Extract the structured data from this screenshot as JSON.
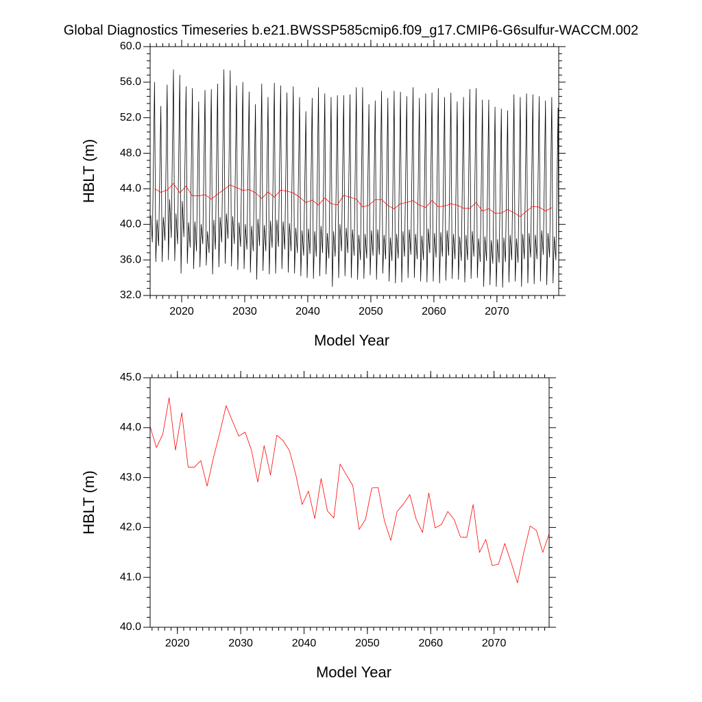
{
  "chart_data": [
    {
      "type": "line",
      "title": "Global Diagnostics Timeseries b.e21.BWSSP585cmip6.f09_g17.CMIP6-G6sulfur-WACCM.002",
      "x_label": "Model Year",
      "y_label": "HBLT (m)",
      "xlim": [
        2015.0,
        2079.8
      ],
      "ylim": [
        32,
        60
      ],
      "xticks": [
        2020,
        2030,
        2040,
        2050,
        2060,
        2070
      ],
      "yticks": [
        {
          "value": 32,
          "label": "32.0"
        },
        {
          "value": 36,
          "label": "36.0"
        },
        {
          "value": 40,
          "label": "40.0"
        },
        {
          "value": 44,
          "label": "44.0"
        },
        {
          "value": 48,
          "label": "48.0"
        },
        {
          "value": 52,
          "label": "52.0"
        },
        {
          "value": 56,
          "label": "56.0"
        },
        {
          "value": 60,
          "label": "60.0"
        }
      ],
      "series": [
        {
          "color": "#000000",
          "x": [
            2015.1,
            2015.35,
            2015.7,
            2015.9,
            2016.1,
            2016.35,
            2016.7,
            2016.9,
            2017.1,
            2017.35,
            2017.7,
            2017.9,
            2018.1,
            2018.35,
            2018.7,
            2018.9,
            2019.1,
            2019.35,
            2019.7,
            2019.9,
            2020.1,
            2020.35,
            2020.7,
            2020.9,
            2021.1,
            2021.35,
            2021.7,
            2021.9,
            2022.1,
            2022.35,
            2022.7,
            2022.9,
            2023.1,
            2023.35,
            2023.7,
            2023.9,
            2024.1,
            2024.35,
            2024.7,
            2024.9,
            2025.1,
            2025.35,
            2025.7,
            2025.9,
            2026.1,
            2026.35,
            2026.7,
            2026.9,
            2027.1,
            2027.35,
            2027.7,
            2027.9,
            2028.1,
            2028.35,
            2028.7,
            2028.9,
            2029.1,
            2029.35,
            2029.7,
            2029.9,
            2030.1,
            2030.35,
            2030.7,
            2030.9,
            2031.1,
            2031.35,
            2031.7,
            2031.9,
            2032.1,
            2032.35,
            2032.7,
            2032.9,
            2033.1,
            2033.35,
            2033.7,
            2033.9,
            2034.1,
            2034.35,
            2034.7,
            2034.9,
            2035.1,
            2035.35,
            2035.7,
            2035.9,
            2036.1,
            2036.35,
            2036.7,
            2036.9,
            2037.1,
            2037.35,
            2037.7,
            2037.9,
            2038.1,
            2038.35,
            2038.7,
            2038.9,
            2039.1,
            2039.35,
            2039.7,
            2039.9,
            2040.1,
            2040.35,
            2040.7,
            2040.9,
            2041.1,
            2041.35,
            2041.7,
            2041.9,
            2042.1,
            2042.35,
            2042.7,
            2042.9,
            2043.1,
            2043.35,
            2043.7,
            2043.9,
            2044.1,
            2044.35,
            2044.7,
            2044.9,
            2045.1,
            2045.35,
            2045.7,
            2045.9,
            2046.1,
            2046.35,
            2046.7,
            2046.9,
            2047.1,
            2047.35,
            2047.7,
            2047.9,
            2048.1,
            2048.35,
            2048.7,
            2048.9,
            2049.1,
            2049.35,
            2049.7,
            2049.9,
            2050.1,
            2050.35,
            2050.7,
            2050.9,
            2051.1,
            2051.35,
            2051.7,
            2051.9,
            2052.1,
            2052.35,
            2052.7,
            2052.9,
            2053.1,
            2053.35,
            2053.7,
            2053.9,
            2054.1,
            2054.35,
            2054.7,
            2054.9,
            2055.1,
            2055.35,
            2055.7,
            2055.9,
            2056.1,
            2056.35,
            2056.7,
            2056.9,
            2057.1,
            2057.35,
            2057.7,
            2057.9,
            2058.1,
            2058.35,
            2058.7,
            2058.9,
            2059.1,
            2059.35,
            2059.7,
            2059.9,
            2060.1,
            2060.35,
            2060.7,
            2060.9,
            2061.1,
            2061.35,
            2061.7,
            2061.9,
            2062.1,
            2062.35,
            2062.7,
            2062.9,
            2063.1,
            2063.35,
            2063.7,
            2063.9,
            2064.1,
            2064.35,
            2064.7,
            2064.9,
            2065.1,
            2065.35,
            2065.7,
            2065.9,
            2066.1,
            2066.35,
            2066.7,
            2066.9,
            2067.1,
            2067.35,
            2067.7,
            2067.9,
            2068.1,
            2068.35,
            2068.7,
            2068.9,
            2069.1,
            2069.35,
            2069.7,
            2069.9,
            2070.1,
            2070.35,
            2070.7,
            2070.9,
            2071.1,
            2071.35,
            2071.7,
            2071.9,
            2072.1,
            2072.35,
            2072.7,
            2072.9,
            2073.1,
            2073.35,
            2073.7,
            2073.9,
            2074.1,
            2074.35,
            2074.7,
            2074.9,
            2075.1,
            2075.35,
            2075.7,
            2075.9,
            2076.1,
            2076.35,
            2076.7,
            2076.9,
            2077.1,
            2077.35,
            2077.7,
            2077.9,
            2078.1,
            2078.35,
            2078.7,
            2078.9,
            2079.1,
            2079.35,
            2079.7,
            2079.8
          ],
          "values": [
            41.0,
            38.0,
            56.0,
            35.8,
            40.5,
            37.6,
            53.3,
            35.8,
            40.8,
            38.2,
            55.7,
            36.0,
            42.8,
            38.5,
            57.4,
            35.9,
            41.2,
            37.8,
            56.8,
            34.5,
            42.6,
            38.6,
            55.5,
            35.6,
            40.2,
            37.4,
            55.3,
            35.0,
            40.3,
            37.0,
            53.8,
            35.2,
            40.0,
            37.8,
            55.1,
            35.4,
            39.2,
            36.8,
            55.2,
            34.4,
            40.5,
            37.2,
            55.8,
            35.2,
            40.8,
            38.0,
            57.4,
            35.6,
            41.2,
            38.4,
            57.3,
            35.3,
            40.9,
            37.8,
            55.6,
            34.9,
            40.2,
            37.5,
            56.0,
            35.0,
            40.0,
            37.2,
            54.9,
            34.6,
            39.8,
            37.0,
            53.5,
            33.8,
            40.6,
            37.6,
            55.8,
            34.8,
            39.9,
            37.0,
            54.3,
            34.4,
            40.4,
            37.4,
            55.9,
            34.5,
            40.5,
            37.5,
            55.6,
            35.0,
            40.3,
            37.2,
            54.8,
            34.6,
            40.1,
            37.0,
            55.5,
            34.5,
            39.6,
            36.8,
            54.3,
            34.2,
            39.3,
            36.5,
            52.7,
            34.0,
            39.5,
            36.7,
            54.2,
            33.9,
            39.2,
            36.4,
            55.4,
            34.2,
            39.8,
            36.8,
            54.7,
            34.4,
            39.0,
            36.2,
            54.3,
            33.0,
            39.2,
            36.4,
            54.5,
            34.0,
            40.0,
            37.0,
            54.5,
            34.2,
            39.6,
            36.8,
            54.6,
            34.0,
            39.4,
            36.5,
            55.4,
            33.8,
            38.8,
            36.0,
            55.4,
            33.9,
            38.9,
            36.2,
            53.5,
            34.3,
            39.3,
            36.5,
            53.9,
            33.8,
            39.4,
            36.6,
            55.0,
            34.5,
            38.8,
            36.1,
            54.2,
            33.6,
            38.5,
            35.9,
            55.0,
            33.4,
            38.9,
            36.2,
            54.9,
            33.5,
            39.2,
            36.4,
            54.4,
            34.0,
            39.4,
            36.6,
            55.4,
            34.0,
            38.9,
            36.1,
            54.2,
            33.6,
            38.7,
            36.0,
            54.7,
            33.5,
            39.5,
            36.8,
            54.8,
            33.6,
            39.0,
            36.3,
            55.3,
            33.4,
            39.1,
            36.4,
            54.3,
            33.7,
            39.3,
            36.5,
            54.8,
            33.9,
            38.9,
            36.1,
            53.8,
            33.8,
            38.6,
            35.9,
            54.3,
            33.5,
            38.8,
            36.0,
            55.2,
            33.9,
            39.2,
            36.4,
            55.3,
            34.0,
            38.4,
            35.8,
            54.0,
            33.0,
            38.6,
            35.9,
            54.0,
            33.2,
            38.2,
            35.6,
            53.2,
            33.0,
            38.3,
            35.7,
            53.0,
            32.9,
            38.5,
            35.8,
            52.8,
            33.5,
            38.8,
            36.0,
            54.6,
            33.6,
            38.4,
            35.7,
            54.3,
            33.0,
            38.9,
            36.1,
            54.7,
            33.4,
            39.0,
            36.3,
            54.6,
            33.3,
            38.8,
            36.1,
            54.4,
            33.6,
            39.3,
            36.6,
            53.9,
            33.2,
            39.0,
            36.3,
            54.3,
            33.4,
            38.6,
            36.0,
            53.1,
            33.5
          ]
        },
        {
          "color": "#ff0000",
          "x": [
            2015.7,
            2016.7,
            2017.7,
            2018.7,
            2019.7,
            2020.7,
            2021.7,
            2022.7,
            2023.7,
            2024.7,
            2025.7,
            2026.7,
            2027.7,
            2028.7,
            2029.7,
            2030.7,
            2031.7,
            2032.7,
            2033.7,
            2034.7,
            2035.7,
            2036.7,
            2037.7,
            2038.7,
            2039.7,
            2040.7,
            2041.7,
            2042.7,
            2043.7,
            2044.7,
            2045.7,
            2046.7,
            2047.7,
            2048.7,
            2049.7,
            2050.7,
            2051.7,
            2052.7,
            2053.7,
            2054.7,
            2055.7,
            2056.7,
            2057.7,
            2058.7,
            2059.7,
            2060.7,
            2061.7,
            2062.7,
            2063.7,
            2064.7,
            2065.7,
            2066.7,
            2067.7,
            2068.7,
            2069.7,
            2070.7,
            2071.7,
            2072.7,
            2073.7,
            2074.7,
            2075.7,
            2076.7,
            2077.7,
            2078.7
          ],
          "values": [
            44.02,
            43.6,
            43.87,
            44.6,
            43.55,
            44.3,
            43.21,
            43.21,
            43.34,
            42.83,
            43.4,
            43.9,
            44.44,
            44.13,
            43.83,
            43.91,
            43.55,
            42.91,
            43.64,
            43.05,
            43.85,
            43.74,
            43.54,
            43.06,
            42.46,
            42.73,
            42.18,
            42.98,
            42.33,
            42.19,
            43.27,
            43.05,
            42.84,
            41.96,
            42.16,
            42.79,
            42.8,
            42.13,
            41.74,
            42.32,
            42.47,
            42.66,
            42.17,
            41.9,
            42.69,
            41.99,
            42.06,
            42.32,
            42.16,
            41.81,
            41.8,
            42.46,
            41.5,
            41.76,
            41.24,
            41.26,
            41.68,
            41.3,
            40.89,
            41.5,
            42.03,
            41.94,
            41.5,
            41.87
          ]
        }
      ]
    },
    {
      "type": "line",
      "x_label": "Model Year",
      "y_label": "HBLT (m)",
      "xlim": [
        2015.7,
        2078.7
      ],
      "ylim": [
        40,
        45
      ],
      "xticks": [
        2020,
        2030,
        2040,
        2050,
        2060,
        2070
      ],
      "yticks": [
        {
          "value": 40,
          "label": "40.0"
        },
        {
          "value": 41,
          "label": "41.0"
        },
        {
          "value": 42,
          "label": "42.0"
        },
        {
          "value": 43,
          "label": "43.0"
        },
        {
          "value": 44,
          "label": "44.0"
        },
        {
          "value": 45,
          "label": "45.0"
        }
      ],
      "series": [
        {
          "color": "#ff0000",
          "x": [
            2015.7,
            2016.7,
            2017.7,
            2018.7,
            2019.7,
            2020.7,
            2021.7,
            2022.7,
            2023.7,
            2024.7,
            2025.7,
            2026.7,
            2027.7,
            2028.7,
            2029.7,
            2030.7,
            2031.7,
            2032.7,
            2033.7,
            2034.7,
            2035.7,
            2036.7,
            2037.7,
            2038.7,
            2039.7,
            2040.7,
            2041.7,
            2042.7,
            2043.7,
            2044.7,
            2045.7,
            2046.7,
            2047.7,
            2048.7,
            2049.7,
            2050.7,
            2051.7,
            2052.7,
            2053.7,
            2054.7,
            2055.7,
            2056.7,
            2057.7,
            2058.7,
            2059.7,
            2060.7,
            2061.7,
            2062.7,
            2063.7,
            2064.7,
            2065.7,
            2066.7,
            2067.7,
            2068.7,
            2069.7,
            2070.7,
            2071.7,
            2072.7,
            2073.7,
            2074.7,
            2075.7,
            2076.7,
            2077.7,
            2078.7
          ],
          "values": [
            44.02,
            43.6,
            43.87,
            44.6,
            43.55,
            44.3,
            43.21,
            43.21,
            43.34,
            42.83,
            43.4,
            43.9,
            44.44,
            44.13,
            43.83,
            43.91,
            43.55,
            42.91,
            43.64,
            43.05,
            43.85,
            43.74,
            43.54,
            43.06,
            42.46,
            42.73,
            42.18,
            42.98,
            42.33,
            42.19,
            43.27,
            43.05,
            42.84,
            41.96,
            42.16,
            42.79,
            42.8,
            42.13,
            41.74,
            42.32,
            42.47,
            42.66,
            42.17,
            41.9,
            42.69,
            41.99,
            42.06,
            42.32,
            42.16,
            41.81,
            41.8,
            42.46,
            41.5,
            41.76,
            41.24,
            41.26,
            41.68,
            41.3,
            40.89,
            41.5,
            42.03,
            41.94,
            41.5,
            41.87
          ]
        }
      ]
    }
  ]
}
